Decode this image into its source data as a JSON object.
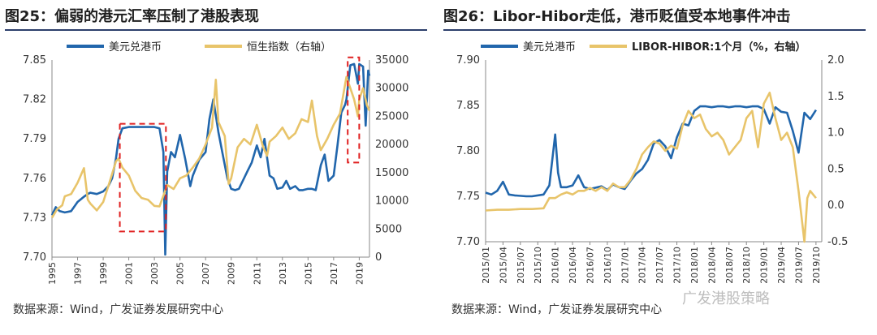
{
  "left": {
    "title": "图25：偏弱的港元汇率压制了港股表现",
    "source": "数据来源：Wind，广发证券发展研究中心",
    "chart_data": {
      "type": "line",
      "legend": [
        "美元兑港币",
        "恒生指数（右轴）"
      ],
      "colors": {
        "usdhkd": "#2166ac",
        "hsi": "#e8c46a",
        "highlight": "#e02020"
      },
      "x_ticks": [
        "1995",
        "1997",
        "1999",
        "2001",
        "2003",
        "2005",
        "2007",
        "2009",
        "2011",
        "2013",
        "2015",
        "2017",
        "2019"
      ],
      "xlim": [
        1995,
        2019.8
      ],
      "y_left": {
        "ticks": [
          "7.85",
          "7.82",
          "7.79",
          "7.76",
          "7.73",
          "7.70"
        ],
        "lim": [
          7.7,
          7.85
        ]
      },
      "y_right": {
        "ticks": [
          "35000",
          "30000",
          "25000",
          "20000",
          "15000",
          "10000",
          "5000",
          "0"
        ],
        "lim": [
          0,
          35000
        ]
      },
      "series": [
        {
          "name": "美元兑港币",
          "axis": "left",
          "points": [
            [
              1995,
              7.732
            ],
            [
              1995.3,
              7.738
            ],
            [
              1995.6,
              7.735
            ],
            [
              1996,
              7.734
            ],
            [
              1996.5,
              7.735
            ],
            [
              1997,
              7.742
            ],
            [
              1997.5,
              7.746
            ],
            [
              1997.8,
              7.748
            ],
            [
              1998,
              7.749
            ],
            [
              1998.5,
              7.748
            ],
            [
              1999,
              7.75
            ],
            [
              1999.4,
              7.754
            ],
            [
              1999.7,
              7.76
            ],
            [
              2000,
              7.775
            ],
            [
              2000.2,
              7.79
            ],
            [
              2000.5,
              7.798
            ],
            [
              2001,
              7.799
            ],
            [
              2001.5,
              7.799
            ],
            [
              2002,
              7.799
            ],
            [
              2002.5,
              7.799
            ],
            [
              2003,
              7.799
            ],
            [
              2003.4,
              7.798
            ],
            [
              2003.7,
              7.78
            ],
            [
              2003.85,
              7.702
            ],
            [
              2004,
              7.765
            ],
            [
              2004.3,
              7.78
            ],
            [
              2004.6,
              7.776
            ],
            [
              2005,
              7.793
            ],
            [
              2005.4,
              7.775
            ],
            [
              2005.8,
              7.754
            ],
            [
              2006,
              7.762
            ],
            [
              2006.5,
              7.774
            ],
            [
              2007,
              7.78
            ],
            [
              2007.3,
              7.805
            ],
            [
              2007.6,
              7.82
            ],
            [
              2008,
              7.795
            ],
            [
              2008.3,
              7.78
            ],
            [
              2008.7,
              7.76
            ],
            [
              2009,
              7.752
            ],
            [
              2009.3,
              7.751
            ],
            [
              2009.6,
              7.752
            ],
            [
              2010,
              7.76
            ],
            [
              2010.3,
              7.766
            ],
            [
              2010.6,
              7.772
            ],
            [
              2011,
              7.785
            ],
            [
              2011.3,
              7.776
            ],
            [
              2011.6,
              7.79
            ],
            [
              2012,
              7.762
            ],
            [
              2012.3,
              7.76
            ],
            [
              2012.6,
              7.752
            ],
            [
              2013,
              7.753
            ],
            [
              2013.3,
              7.758
            ],
            [
              2013.6,
              7.752
            ],
            [
              2014,
              7.754
            ],
            [
              2014.3,
              7.751
            ],
            [
              2014.6,
              7.751
            ],
            [
              2015,
              7.752
            ],
            [
              2015.3,
              7.752
            ],
            [
              2015.6,
              7.751
            ],
            [
              2016,
              7.77
            ],
            [
              2016.3,
              7.778
            ],
            [
              2016.6,
              7.758
            ],
            [
              2017,
              7.762
            ],
            [
              2017.3,
              7.785
            ],
            [
              2017.6,
              7.81
            ],
            [
              2017.9,
              7.816
            ],
            [
              2018,
              7.82
            ],
            [
              2018.3,
              7.846
            ],
            [
              2018.6,
              7.847
            ],
            [
              2018.9,
              7.832
            ],
            [
              2019,
              7.847
            ],
            [
              2019.3,
              7.845
            ],
            [
              2019.5,
              7.8
            ],
            [
              2019.7,
              7.842
            ],
            [
              2019.8,
              7.838
            ]
          ]
        },
        {
          "name": "恒生指数（右轴）",
          "axis": "right",
          "points": [
            [
              1995,
              7000
            ],
            [
              1995.4,
              8500
            ],
            [
              1995.8,
              9200
            ],
            [
              1996,
              10800
            ],
            [
              1996.5,
              11200
            ],
            [
              1997,
              13200
            ],
            [
              1997.5,
              15800
            ],
            [
              1997.8,
              10200
            ],
            [
              1998,
              9500
            ],
            [
              1998.5,
              8300
            ],
            [
              1999,
              9800
            ],
            [
              1999.5,
              13300
            ],
            [
              2000,
              17000
            ],
            [
              2000.2,
              17500
            ],
            [
              2000.5,
              15900
            ],
            [
              2001,
              14500
            ],
            [
              2001.5,
              11800
            ],
            [
              2002,
              10500
            ],
            [
              2002.5,
              10200
            ],
            [
              2003,
              9100
            ],
            [
              2003.4,
              9000
            ],
            [
              2003.8,
              11500
            ],
            [
              2004,
              12800
            ],
            [
              2004.5,
              12100
            ],
            [
              2005,
              14000
            ],
            [
              2005.5,
              14500
            ],
            [
              2006,
              15900
            ],
            [
              2006.5,
              17500
            ],
            [
              2007,
              20000
            ],
            [
              2007.5,
              23000
            ],
            [
              2007.8,
              31500
            ],
            [
              2008,
              24000
            ],
            [
              2008.5,
              21500
            ],
            [
              2008.8,
              13000
            ],
            [
              2009,
              14000
            ],
            [
              2009.5,
              19500
            ],
            [
              2010,
              21000
            ],
            [
              2010.5,
              20000
            ],
            [
              2011,
              23500
            ],
            [
              2011.5,
              19500
            ],
            [
              2011.8,
              18000
            ],
            [
              2012,
              20500
            ],
            [
              2012.5,
              21500
            ],
            [
              2013,
              23000
            ],
            [
              2013.5,
              21000
            ],
            [
              2014,
              22000
            ],
            [
              2014.5,
              24500
            ],
            [
              2015,
              24000
            ],
            [
              2015.3,
              27800
            ],
            [
              2015.7,
              21500
            ],
            [
              2016,
              19000
            ],
            [
              2016.5,
              21000
            ],
            [
              2017,
              23500
            ],
            [
              2017.5,
              25500
            ],
            [
              2018,
              32000
            ],
            [
              2018.3,
              30000
            ],
            [
              2018.6,
              28000
            ],
            [
              2018.9,
              25000
            ],
            [
              2019,
              28000
            ],
            [
              2019.3,
              30000
            ],
            [
              2019.6,
              27000
            ],
            [
              2019.8,
              26000
            ]
          ]
        }
      ],
      "highlight_boxes": [
        {
          "x0": 2000.3,
          "x1": 2003.9,
          "y0": 7.7195,
          "y1": 7.8015
        },
        {
          "x0": 2018.1,
          "x1": 2019.0,
          "y0": 7.772,
          "y1": 7.852
        }
      ]
    }
  },
  "right": {
    "title": "图26：Libor-Hibor走低，港币贬值受本地事件冲击",
    "source": "数据来源：Wind，广发证券发展研究中心",
    "watermark": "广发港股策略",
    "chart_data": {
      "type": "line",
      "legend": [
        "美元兑港币",
        "LIBOR-HIBOR:1个月（%，右轴）"
      ],
      "colors": {
        "usdhkd": "#2166ac",
        "spread": "#e8c46a"
      },
      "x_ticks": [
        "2015/01",
        "2015/04",
        "2015/07",
        "2015/10",
        "2016/01",
        "2016/04",
        "2016/07",
        "2016/10",
        "2017/01",
        "2017/04",
        "2017/07",
        "2017/10",
        "2018/01",
        "2018/04",
        "2018/07",
        "2018/10",
        "2019/01",
        "2019/04",
        "2019/07",
        "2019/10"
      ],
      "xlim": [
        0,
        58
      ],
      "y_left": {
        "ticks": [
          "7.90",
          "7.85",
          "7.80",
          "7.75",
          "7.70"
        ],
        "lim": [
          7.7,
          7.9
        ]
      },
      "y_right": {
        "ticks": [
          "2.0",
          "1.5",
          "1.0",
          "0.5",
          "0.0",
          "-0.5"
        ],
        "lim": [
          -0.5,
          2.0
        ]
      },
      "series": [
        {
          "name": "美元兑港币",
          "axis": "left",
          "points": [
            [
              0,
              7.754
            ],
            [
              1,
              7.752
            ],
            [
              2,
              7.756
            ],
            [
              3,
              7.766
            ],
            [
              4,
              7.752
            ],
            [
              5,
              7.751
            ],
            [
              7,
              7.75
            ],
            [
              8,
              7.75
            ],
            [
              10,
              7.752
            ],
            [
              11,
              7.762
            ],
            [
              12,
              7.818
            ],
            [
              12.5,
              7.776
            ],
            [
              13,
              7.76
            ],
            [
              14,
              7.76
            ],
            [
              15,
              7.762
            ],
            [
              16,
              7.773
            ],
            [
              17,
              7.76
            ],
            [
              18,
              7.758
            ],
            [
              20,
              7.761
            ],
            [
              21,
              7.757
            ],
            [
              22,
              7.763
            ],
            [
              23,
              7.76
            ],
            [
              24,
              7.758
            ],
            [
              25,
              7.767
            ],
            [
              26,
              7.775
            ],
            [
              27,
              7.78
            ],
            [
              28,
              7.79
            ],
            [
              29,
              7.808
            ],
            [
              30,
              7.812
            ],
            [
              31,
              7.805
            ],
            [
              32,
              7.792
            ],
            [
              33,
              7.815
            ],
            [
              34,
              7.83
            ],
            [
              35,
              7.828
            ],
            [
              36,
              7.844
            ],
            [
              37,
              7.849
            ],
            [
              38,
              7.849
            ],
            [
              39,
              7.848
            ],
            [
              40,
              7.849
            ],
            [
              41,
              7.849
            ],
            [
              42,
              7.848
            ],
            [
              43,
              7.849
            ],
            [
              44,
              7.849
            ],
            [
              45,
              7.848
            ],
            [
              46,
              7.849
            ],
            [
              47,
              7.849
            ],
            [
              48,
              7.846
            ],
            [
              49,
              7.83
            ],
            [
              50,
              7.848
            ],
            [
              51,
              7.843
            ],
            [
              52,
              7.842
            ],
            [
              53,
              7.822
            ],
            [
              54,
              7.798
            ],
            [
              55,
              7.842
            ],
            [
              56,
              7.835
            ],
            [
              57,
              7.845
            ]
          ]
        },
        {
          "name": "LIBOR-HIBOR:1个月（%，右轴）",
          "axis": "right",
          "points": [
            [
              0,
              -0.07
            ],
            [
              2,
              -0.06
            ],
            [
              4,
              -0.06
            ],
            [
              6,
              -0.05
            ],
            [
              8,
              -0.05
            ],
            [
              10,
              -0.04
            ],
            [
              11,
              0.1
            ],
            [
              12,
              0.1
            ],
            [
              13,
              0.15
            ],
            [
              14,
              0.18
            ],
            [
              15,
              0.15
            ],
            [
              16,
              0.2
            ],
            [
              17,
              0.2
            ],
            [
              18,
              0.24
            ],
            [
              19,
              0.2
            ],
            [
              20,
              0.25
            ],
            [
              21,
              0.2
            ],
            [
              22,
              0.3
            ],
            [
              23,
              0.25
            ],
            [
              24,
              0.25
            ],
            [
              25,
              0.35
            ],
            [
              26,
              0.5
            ],
            [
              27,
              0.7
            ],
            [
              28,
              0.8
            ],
            [
              29,
              0.88
            ],
            [
              30,
              0.85
            ],
            [
              31,
              0.75
            ],
            [
              32,
              0.82
            ],
            [
              33,
              0.78
            ],
            [
              34,
              1.1
            ],
            [
              35,
              1.3
            ],
            [
              36,
              1.2
            ],
            [
              37,
              1.25
            ],
            [
              38,
              1.05
            ],
            [
              39,
              0.95
            ],
            [
              40,
              1.0
            ],
            [
              41,
              0.9
            ],
            [
              42,
              0.7
            ],
            [
              43,
              0.8
            ],
            [
              44,
              0.9
            ],
            [
              45,
              1.2
            ],
            [
              46,
              1.3
            ],
            [
              47,
              0.8
            ],
            [
              48,
              1.4
            ],
            [
              49,
              1.55
            ],
            [
              50,
              1.2
            ],
            [
              51,
              0.9
            ],
            [
              52,
              1.0
            ],
            [
              53,
              0.8
            ],
            [
              54,
              0.2
            ],
            [
              55,
              -0.5
            ],
            [
              55.5,
              0.1
            ],
            [
              56,
              0.2
            ],
            [
              57,
              0.1
            ]
          ]
        }
      ]
    }
  }
}
